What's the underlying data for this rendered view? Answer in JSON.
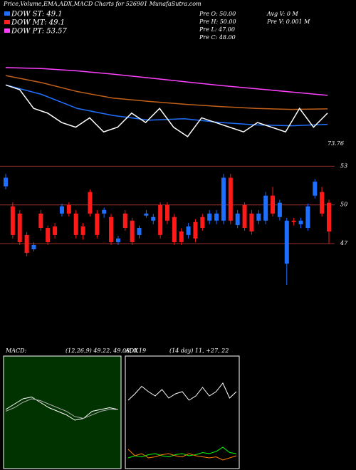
{
  "chart_data": [
    {
      "type": "lines",
      "title": "Price,Volume,EMA,ADX,MACD Charts for 526901 MunafaSutra.com",
      "legend": [
        {
          "name": "DOW ST: 49.1",
          "color": "#1e6fff"
        },
        {
          "name": "DOW MT: 49.1",
          "color": "#ff2020"
        },
        {
          "name": "DOW PT: 53.57",
          "color": "#ff40ff"
        }
      ],
      "info": [
        "Pre  O: 50.00",
        "Pre  H: 50.00",
        "Pre  L: 47.00",
        "Pre  C: 48.00",
        "Avg V: 0  M",
        "Pre  V: 0.001 M"
      ],
      "annotation": "73.76",
      "ylim": [
        40,
        62
      ],
      "series": [
        {
          "name": null,
          "color": "#ff40ff",
          "values": [
            56.7,
            56.5,
            56.0,
            55.3,
            54.5,
            53.7,
            52.9,
            52.2,
            51.5,
            50.8
          ]
        },
        {
          "name": null,
          "color": "#c0601a",
          "values": [
            55,
            53.5,
            51.6,
            50.2,
            49.5,
            48.9,
            48.4,
            48.0,
            47.8,
            47.9
          ]
        },
        {
          "name": null,
          "color": "#2070ff",
          "values": [
            53,
            51,
            48,
            46.5,
            45.5,
            45.8,
            45,
            44.5,
            44.3,
            44.6
          ]
        },
        {
          "name": null,
          "color": "#ffffff",
          "values": [
            53,
            52,
            48,
            47,
            45,
            44,
            46,
            43,
            44,
            47,
            45,
            48,
            44,
            42,
            46,
            45,
            44,
            43,
            45,
            44,
            43,
            48,
            44,
            47
          ]
        }
      ]
    },
    {
      "type": "candlestick",
      "ylim": [
        43.8,
        53.3
      ],
      "yticks": [
        53,
        50,
        47
      ],
      "open": [
        51.44,
        49.89,
        49.33,
        47.67,
        46.56,
        49.33,
        48.22,
        48.33,
        49.33,
        50,
        49.33,
        48.33,
        51,
        49.33,
        49.33,
        49.06,
        47.11,
        49.33,
        48.78,
        47.67,
        49.17,
        48.78,
        50,
        50,
        49.06,
        47.94,
        47.67,
        48.67,
        49.06,
        48.78,
        48.78,
        48.78,
        52.11,
        48.44,
        50,
        49.33,
        48.78,
        48.78,
        50.72,
        49.06,
        45.44,
        48.78,
        48.5,
        48.22,
        50.72,
        51,
        50.17
      ],
      "close": [
        52.11,
        47.67,
        47.11,
        46.28,
        46.9,
        48.22,
        47.11,
        47.67,
        49.89,
        49.33,
        47.67,
        47.67,
        49.33,
        47.67,
        49.61,
        47.11,
        47.39,
        48.22,
        47.11,
        48.22,
        49.33,
        49.06,
        47.67,
        48.78,
        47.11,
        47.11,
        48.33,
        47.39,
        48.22,
        49.33,
        49.33,
        52.11,
        48.78,
        49.33,
        48.22,
        47.94,
        49.33,
        50.72,
        49.33,
        50.17,
        48.78,
        48.67,
        48.78,
        49.89,
        51.8,
        49.33,
        47.94
      ],
      "high": [
        52.4,
        50.2,
        49.6,
        47.9,
        47.1,
        49.6,
        48.4,
        48.6,
        50.1,
        50.2,
        49.6,
        48.6,
        51.2,
        49.6,
        49.8,
        49.3,
        47.6,
        49.6,
        49.0,
        48.4,
        49.6,
        49.3,
        50.2,
        50.2,
        49.3,
        48.2,
        48.6,
        48.9,
        49.3,
        49.6,
        49.6,
        52.4,
        52.4,
        49.6,
        50.2,
        49.6,
        49.6,
        51.0,
        51.4,
        50.4,
        49.0,
        49.0,
        49.0,
        50.1,
        52.0,
        51.4,
        50.4
      ],
      "low": [
        51.2,
        47.4,
        46.9,
        46.0,
        46.4,
        48.0,
        46.9,
        47.4,
        49.1,
        49.1,
        47.4,
        47.3,
        49.1,
        47.4,
        49.0,
        46.9,
        46.9,
        48.0,
        46.9,
        47.4,
        49.0,
        48.5,
        47.4,
        48.5,
        46.9,
        46.9,
        47.4,
        47.1,
        48.0,
        48.5,
        48.5,
        48.5,
        48.5,
        48.2,
        48.0,
        47.7,
        48.5,
        48.5,
        49.1,
        48.8,
        43.8,
        48.4,
        48.2,
        48.0,
        50.5,
        49.1,
        47.0
      ]
    },
    {
      "type": "macd",
      "label": "MACD:",
      "params": "(12,26,9) 49.22, 49.08, 0.19",
      "ylim": [
        -3,
        3
      ],
      "series": [
        {
          "name": null,
          "color": "#ffffff",
          "values": [
            0.2,
            0.5,
            0.8,
            0.9,
            0.6,
            0.3,
            0.1,
            -0.1,
            -0.4,
            -0.3,
            0.1,
            0.2,
            0.3,
            0.2
          ]
        },
        {
          "name": null,
          "color": "#aaaaaa",
          "values": [
            0.1,
            0.3,
            0.6,
            0.8,
            0.7,
            0.5,
            0.3,
            0.1,
            -0.2,
            -0.3,
            -0.1,
            0.1,
            0.2,
            0.2
          ]
        }
      ]
    },
    {
      "type": "adx",
      "label": "ADX",
      "params": "(14 day) 11, +27, 22",
      "ylim": [
        0,
        100
      ],
      "series": [
        {
          "name": null,
          "color": "#ffffff",
          "values": [
            62,
            68,
            75,
            70,
            66,
            72,
            64,
            68,
            70,
            62,
            66,
            74,
            66,
            70,
            78,
            64,
            70
          ]
        },
        {
          "name": null,
          "color": "#00ff00",
          "values": [
            8,
            10,
            9,
            11,
            12,
            10,
            9,
            11,
            12,
            10,
            11,
            13,
            12,
            14,
            18,
            13,
            12
          ]
        },
        {
          "name": null,
          "color": "#ff8000",
          "values": [
            16,
            10,
            12,
            8,
            9,
            11,
            12,
            10,
            9,
            12,
            10,
            9,
            8,
            9,
            6,
            8,
            10
          ]
        }
      ]
    }
  ]
}
